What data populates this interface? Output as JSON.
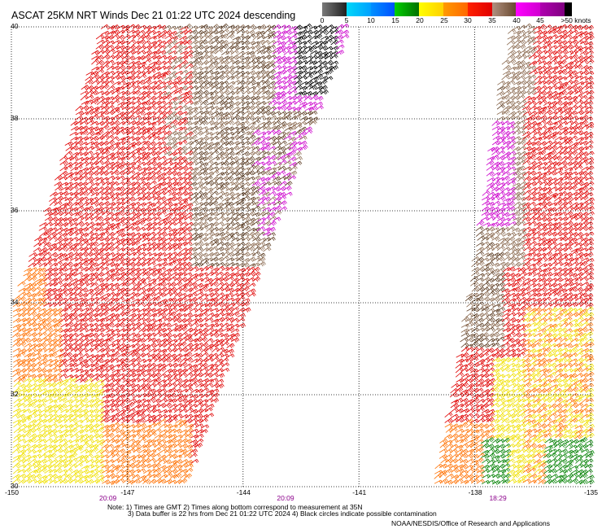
{
  "title": "ASCAT 25KM NRT Winds Dec 21 01:22 UTC 2024 descending",
  "colorbar": {
    "labels": [
      "0",
      "5",
      "10",
      "15",
      "20",
      "25",
      "30",
      "35",
      "40",
      "45",
      ">50 knots"
    ],
    "segments": [
      {
        "from": 0,
        "to": 5,
        "colors": [
          "#7a7a7a",
          "#202020"
        ]
      },
      {
        "from": 5,
        "to": 10,
        "colors": [
          "#00d8f8",
          "#00a0ff"
        ]
      },
      {
        "from": 10,
        "to": 15,
        "colors": [
          "#0090ff",
          "#0050ff"
        ]
      },
      {
        "from": 15,
        "to": 20,
        "colors": [
          "#00d000",
          "#007000"
        ]
      },
      {
        "from": 20,
        "to": 25,
        "colors": [
          "#ffff00",
          "#ffd000"
        ]
      },
      {
        "from": 25,
        "to": 30,
        "colors": [
          "#ff9a00",
          "#ff6800"
        ]
      },
      {
        "from": 30,
        "to": 35,
        "colors": [
          "#ff2000",
          "#e00000"
        ]
      },
      {
        "from": 35,
        "to": 40,
        "colors": [
          "#b09080",
          "#6a4a30"
        ]
      },
      {
        "from": 40,
        "to": 45,
        "colors": [
          "#ff00ff",
          "#d000d0"
        ]
      },
      {
        "from": 45,
        "to": 50,
        "colors": [
          "#b000b0",
          "#800080"
        ]
      },
      {
        "from": 50,
        "to": 55,
        "colors": [
          "#000000",
          "#000000"
        ]
      }
    ]
  },
  "map": {
    "lon_range": [
      -150,
      -135
    ],
    "lat_range": [
      30,
      40
    ],
    "lon_ticks": [
      "-150",
      "-147",
      "-144",
      "-141",
      "-138",
      "-135"
    ],
    "lat_ticks": [
      "40",
      "38",
      "36",
      "34",
      "32",
      "30"
    ],
    "grid": "dotted",
    "swath_times": [
      {
        "lon": -147.5,
        "time": "20:09"
      },
      {
        "lon": -142.9,
        "time": "20:09"
      },
      {
        "lon": -137.4,
        "time": "18:29"
      }
    ],
    "wind_colors": {
      "black": "#000000",
      "magenta": "#cc00cc",
      "brown": "#8b6a50",
      "dark_brown": "#5a3a20",
      "red": "#e00000",
      "orange": "#ff7000",
      "yellow": "#f0e000",
      "green": "#008000"
    }
  },
  "notes": {
    "line1": "Note: 1) Times are GMT 2) Times along bottom correspond to measurement at 35N",
    "line2": "3) Data buffer is 22 hrs from Dec 21 01:22 UTC 2024 4) Black circles indicate possible contamination",
    "credit": "NOAA/NESDIS/Office of Research and Applications"
  }
}
